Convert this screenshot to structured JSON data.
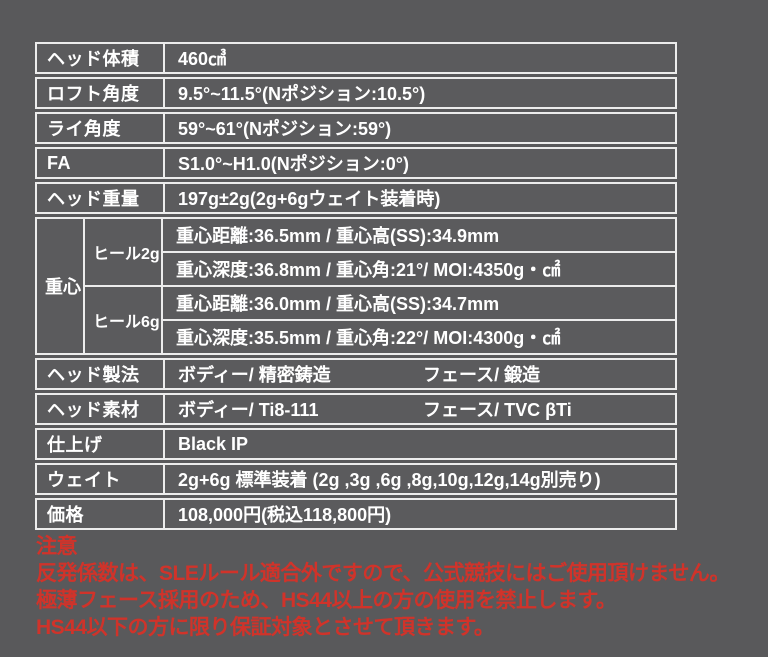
{
  "colors": {
    "background": "#59595b",
    "cell_background": "#5b5b5d",
    "border": "#ececec",
    "text": "#ffffff",
    "warning_text": "#d0332a"
  },
  "spec_table": {
    "rows_top": [
      {
        "label": "ヘッド体積",
        "value": "460㎤"
      },
      {
        "label": "ロフト角度",
        "value": "9.5°~11.5°(Nポジション:10.5°)"
      },
      {
        "label": "ライ角度",
        "value": "59°~61°(Nポジション:59°)"
      },
      {
        "label": "FA",
        "value": "S1.0°~H1.0(Nポジション:0°)"
      },
      {
        "label": "ヘッド重量",
        "value": "197g±2g(2g+6gウェイト装着時)"
      }
    ],
    "balance": {
      "label": "重心",
      "configs": [
        {
          "label": "ヒール2g",
          "line1": "重心距離:36.5mm / 重心高(SS):34.9mm",
          "line2": "重心深度:36.8mm / 重心角:21°/ MOI:4350g・㎠"
        },
        {
          "label": "ヒール6g",
          "line1": "重心距離:36.0mm / 重心高(SS):34.7mm",
          "line2": "重心深度:35.5mm / 重心角:22°/ MOI:4300g・㎠"
        }
      ]
    },
    "rows_split": [
      {
        "label": "ヘッド製法",
        "value1": "ボディー/ 精密鋳造",
        "value2": "フェース/ 鍛造"
      },
      {
        "label": "ヘッド素材",
        "value1": "ボディー/ Ti8-111",
        "value2": "フェース/ TVC βTi"
      }
    ],
    "rows_bottom": [
      {
        "label": "仕上げ",
        "value": "Black IP"
      },
      {
        "label": "ウェイト",
        "value": "2g+6g 標準装着 (2g ,3g ,6g ,8g,10g,12g,14g別売り)"
      },
      {
        "label": "価格",
        "value": "108,000円(税込118,800円)"
      }
    ]
  },
  "notes": {
    "title": "注意",
    "lines": [
      "反発係数は、SLEルール適合外ですので、公式競技にはご使用頂けません。",
      "極薄フェース採用のため、HS44以上の方の使用を禁止します。",
      "HS44以下の方に限り保証対象とさせて頂きます。"
    ]
  }
}
